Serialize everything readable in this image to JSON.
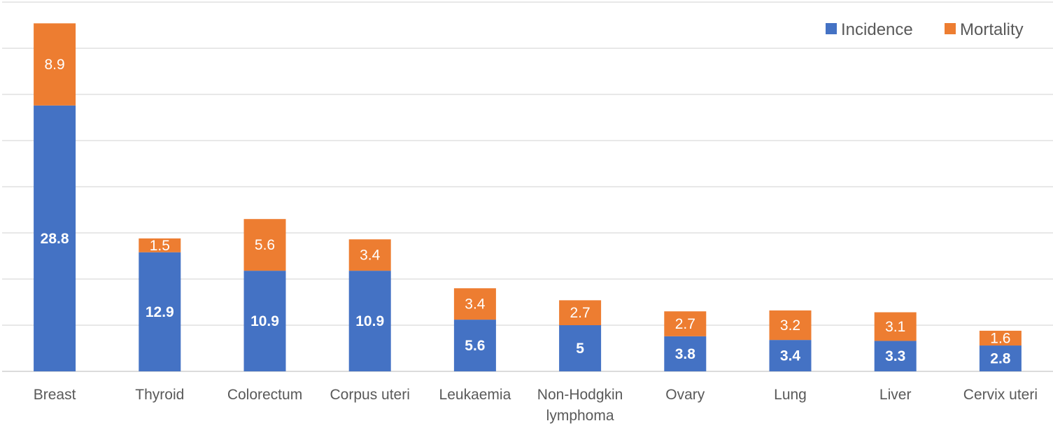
{
  "chart_data": {
    "type": "bar",
    "stacked": true,
    "categories": [
      "Breast",
      "Thyroid",
      "Colorectum",
      "Corpus uteri",
      "Leukaemia",
      "Non-Hodgkin lymphoma",
      "Ovary",
      "Lung",
      "Liver",
      "Cervix uteri"
    ],
    "series": [
      {
        "name": "Incidence",
        "color": "#4472c4",
        "values": [
          28.8,
          12.9,
          10.9,
          10.9,
          5.6,
          5,
          3.8,
          3.4,
          3.3,
          2.8
        ]
      },
      {
        "name": "Mortality",
        "color": "#ed7d31",
        "values": [
          8.9,
          1.5,
          5.6,
          3.4,
          3.4,
          2.7,
          2.7,
          3.2,
          3.1,
          1.6
        ]
      }
    ],
    "title": "",
    "xlabel": "",
    "ylabel": "",
    "ylim": [
      0,
      40
    ],
    "grid": true,
    "legend": "top-right"
  }
}
